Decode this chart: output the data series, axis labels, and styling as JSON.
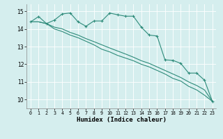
{
  "bg_color": "#d5eeee",
  "grid_color": "#ffffff",
  "line_color": "#2e8b7a",
  "xlabel": "Humidex (Indice chaleur)",
  "xlim": [
    -0.5,
    23.5
  ],
  "ylim": [
    9.5,
    15.4
  ],
  "yticks": [
    10,
    11,
    12,
    13,
    14,
    15
  ],
  "xticks": [
    0,
    1,
    2,
    3,
    4,
    5,
    6,
    7,
    8,
    9,
    10,
    11,
    12,
    13,
    14,
    15,
    16,
    17,
    18,
    19,
    20,
    21,
    22,
    23
  ],
  "line1_x": [
    0,
    1,
    2,
    3,
    4,
    5,
    6,
    7,
    8,
    9,
    10,
    11,
    12,
    13,
    14,
    15,
    16,
    17,
    18,
    19,
    20,
    21,
    22,
    23
  ],
  "line1_y": [
    14.4,
    14.7,
    14.3,
    14.5,
    14.85,
    14.9,
    14.4,
    14.15,
    14.45,
    14.45,
    14.9,
    14.8,
    14.72,
    14.72,
    14.1,
    13.65,
    13.6,
    12.25,
    12.22,
    12.05,
    11.5,
    11.5,
    11.1,
    9.9
  ],
  "line2_x": [
    0,
    1,
    2,
    3,
    4,
    5,
    6,
    7,
    8,
    9,
    10,
    11,
    12,
    13,
    14,
    15,
    16,
    17,
    18,
    19,
    20,
    21,
    22,
    23
  ],
  "line2_y": [
    14.4,
    14.4,
    14.3,
    14.0,
    13.85,
    13.65,
    13.5,
    13.3,
    13.1,
    12.85,
    12.7,
    12.5,
    12.35,
    12.2,
    12.0,
    11.85,
    11.65,
    11.45,
    11.2,
    11.05,
    10.75,
    10.55,
    10.25,
    9.9
  ],
  "line3_x": [
    0,
    1,
    2,
    3,
    4,
    5,
    6,
    7,
    8,
    9,
    10,
    11,
    12,
    13,
    14,
    15,
    16,
    17,
    18,
    19,
    20,
    21,
    22,
    23
  ],
  "line3_y": [
    14.4,
    14.4,
    14.3,
    14.1,
    14.0,
    13.8,
    13.65,
    13.45,
    13.28,
    13.1,
    12.92,
    12.75,
    12.58,
    12.4,
    12.2,
    12.05,
    11.85,
    11.65,
    11.45,
    11.25,
    11.0,
    10.8,
    10.55,
    9.9
  ],
  "marker": "+",
  "marker_size": 3,
  "line_width": 0.8,
  "font_size_label": 6.5,
  "font_size_tick": 5.5
}
